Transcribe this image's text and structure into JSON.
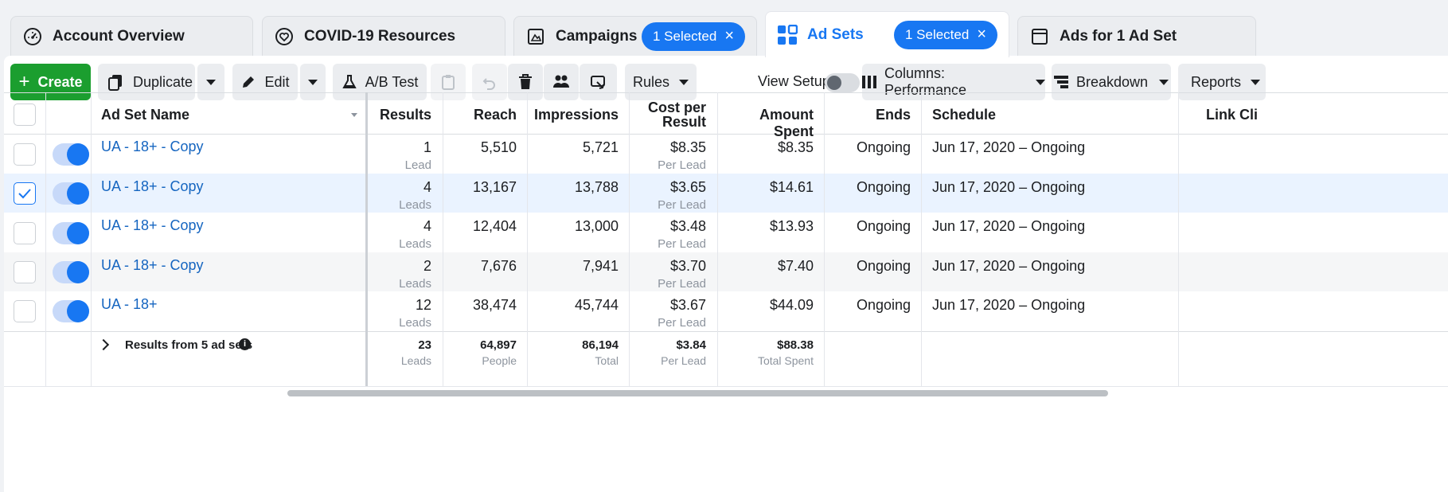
{
  "tabs": [
    {
      "label": "Account Overview",
      "icon": "gauge-icon"
    },
    {
      "label": "COVID-19 Resources",
      "icon": "heart-icon"
    },
    {
      "label": "Campaigns",
      "icon": "flag-icon",
      "badge": "1 Selected"
    },
    {
      "label": "Ad Sets",
      "icon": "grid-icon",
      "badge": "1 Selected",
      "active": true
    },
    {
      "label": "Ads for 1 Ad Set",
      "icon": "window-icon"
    }
  ],
  "toolbar": {
    "create": "Create",
    "duplicate": "Duplicate",
    "edit": "Edit",
    "ab_test": "A/B Test",
    "rules": "Rules",
    "view_setup": "View Setup",
    "columns": "Columns: Performance",
    "breakdown": "Breakdown",
    "reports": "Reports"
  },
  "columns": {
    "name": "Ad Set Name",
    "results": "Results",
    "reach": "Reach",
    "impressions": "Impressions",
    "cost_line1": "Cost per",
    "cost_line2": "Result",
    "amount": "Amount Spent",
    "ends": "Ends",
    "schedule": "Schedule",
    "link_clicks": "Link Cli"
  },
  "rows": [
    {
      "name": "UA - 18+ - Copy",
      "results": "1",
      "results_unit": "Lead",
      "reach": "5,510",
      "impressions": "5,721",
      "cost": "$8.35",
      "cost_unit": "Per Lead",
      "amount": "$8.35",
      "ends": "Ongoing",
      "schedule": "Jun 17, 2020 – Ongoing",
      "checked": false
    },
    {
      "name": "UA - 18+ - Copy",
      "results": "4",
      "results_unit": "Leads",
      "reach": "13,167",
      "impressions": "13,788",
      "cost": "$3.65",
      "cost_unit": "Per Lead",
      "amount": "$14.61",
      "ends": "Ongoing",
      "schedule": "Jun 17, 2020 – Ongoing",
      "checked": true
    },
    {
      "name": "UA - 18+ - Copy",
      "results": "4",
      "results_unit": "Leads",
      "reach": "12,404",
      "impressions": "13,000",
      "cost": "$3.48",
      "cost_unit": "Per Lead",
      "amount": "$13.93",
      "ends": "Ongoing",
      "schedule": "Jun 17, 2020 – Ongoing",
      "checked": false
    },
    {
      "name": "UA - 18+ - Copy",
      "results": "2",
      "results_unit": "Leads",
      "reach": "7,676",
      "impressions": "7,941",
      "cost": "$3.70",
      "cost_unit": "Per Lead",
      "amount": "$7.40",
      "ends": "Ongoing",
      "schedule": "Jun 17, 2020 – Ongoing",
      "checked": false
    },
    {
      "name": "UA - 18+",
      "results": "12",
      "results_unit": "Leads",
      "reach": "38,474",
      "impressions": "45,744",
      "cost": "$3.67",
      "cost_unit": "Per Lead",
      "amount": "$44.09",
      "ends": "Ongoing",
      "schedule": "Jun 17, 2020 – Ongoing",
      "checked": false
    }
  ],
  "totals": {
    "label": "Results from 5 ad sets",
    "results": "23",
    "results_unit": "Leads",
    "reach": "64,897",
    "reach_unit": "People",
    "impressions": "86,194",
    "impressions_unit": "Total",
    "cost": "$3.84",
    "cost_unit": "Per Lead",
    "amount": "$88.38",
    "amount_unit": "Total Spent"
  },
  "colors": {
    "accent": "#1877f2",
    "create": "#1b9e2f",
    "link": "#1565c0",
    "selected_row": "#eaf3ff"
  }
}
